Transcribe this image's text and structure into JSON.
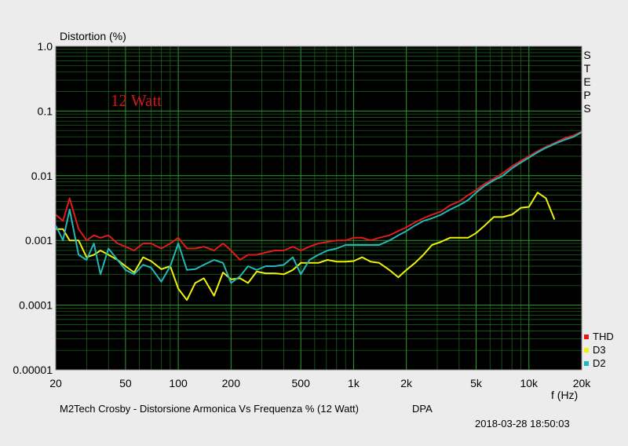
{
  "chart_data": {
    "type": "line",
    "xscale": "log",
    "yscale": "log",
    "xlim": [
      20,
      20000
    ],
    "ylim": [
      1e-05,
      1.0
    ],
    "ylabel": "Distortion (%)",
    "xlabel": "f (Hz)",
    "annotation": "12 Watt",
    "side_label": "STEPS",
    "x_ticks": [
      {
        "v": 20,
        "label": "20"
      },
      {
        "v": 50,
        "label": "50"
      },
      {
        "v": 100,
        "label": "100"
      },
      {
        "v": 200,
        "label": "200"
      },
      {
        "v": 500,
        "label": "500"
      },
      {
        "v": 1000,
        "label": "1k"
      },
      {
        "v": 2000,
        "label": "2k"
      },
      {
        "v": 5000,
        "label": "5k"
      },
      {
        "v": 10000,
        "label": "10k"
      },
      {
        "v": 20000,
        "label": "20k"
      }
    ],
    "y_ticks": [
      {
        "v": 1.0,
        "label": "1.0"
      },
      {
        "v": 0.1,
        "label": "0.1"
      },
      {
        "v": 0.01,
        "label": "0.01"
      },
      {
        "v": 0.001,
        "label": "0.001"
      },
      {
        "v": 0.0001,
        "label": "0.0001"
      },
      {
        "v": 1e-05,
        "label": "0.00001"
      }
    ],
    "grid": true,
    "legend_position": "bottom-right",
    "background": "#000000",
    "grid_color": "#1f6b1f",
    "major_grid_color": "#2e9a2e",
    "series": [
      {
        "name": "THD",
        "color": "#e01b1b",
        "points": [
          [
            20,
            0.0025
          ],
          [
            22,
            0.002
          ],
          [
            24,
            0.0045
          ],
          [
            27,
            0.0015
          ],
          [
            30,
            0.001
          ],
          [
            33,
            0.0012
          ],
          [
            36,
            0.0011
          ],
          [
            40,
            0.0012
          ],
          [
            45,
            0.0009
          ],
          [
            50,
            0.0008
          ],
          [
            56,
            0.0007
          ],
          [
            63,
            0.0009
          ],
          [
            70,
            0.0009
          ],
          [
            80,
            0.00075
          ],
          [
            90,
            0.0009
          ],
          [
            100,
            0.0011
          ],
          [
            112,
            0.00075
          ],
          [
            125,
            0.00075
          ],
          [
            140,
            0.0008
          ],
          [
            160,
            0.0007
          ],
          [
            180,
            0.0009
          ],
          [
            200,
            0.0007
          ],
          [
            225,
            0.0005
          ],
          [
            250,
            0.0006
          ],
          [
            280,
            0.0006
          ],
          [
            315,
            0.00065
          ],
          [
            355,
            0.0007
          ],
          [
            400,
            0.0007
          ],
          [
            450,
            0.0008
          ],
          [
            500,
            0.0007
          ],
          [
            560,
            0.0008
          ],
          [
            630,
            0.0009
          ],
          [
            710,
            0.00095
          ],
          [
            800,
            0.001
          ],
          [
            900,
            0.001
          ],
          [
            1000,
            0.0011
          ],
          [
            1120,
            0.0011
          ],
          [
            1250,
            0.001
          ],
          [
            1400,
            0.0011
          ],
          [
            1600,
            0.0012
          ],
          [
            1800,
            0.0014
          ],
          [
            2000,
            0.0016
          ],
          [
            2240,
            0.0019
          ],
          [
            2500,
            0.0022
          ],
          [
            2800,
            0.0025
          ],
          [
            3150,
            0.0028
          ],
          [
            3550,
            0.0035
          ],
          [
            4000,
            0.004
          ],
          [
            4500,
            0.005
          ],
          [
            5000,
            0.006
          ],
          [
            5600,
            0.0075
          ],
          [
            6300,
            0.009
          ],
          [
            7100,
            0.011
          ],
          [
            8000,
            0.014
          ],
          [
            9000,
            0.017
          ],
          [
            10000,
            0.02
          ],
          [
            11200,
            0.024
          ],
          [
            12500,
            0.028
          ],
          [
            14000,
            0.032
          ],
          [
            16000,
            0.038
          ],
          [
            18000,
            0.042
          ],
          [
            20000,
            0.048
          ]
        ]
      },
      {
        "name": "D3",
        "color": "#f0f00a",
        "points": [
          [
            20,
            0.0015
          ],
          [
            22,
            0.0015
          ],
          [
            24,
            0.001
          ],
          [
            27,
            0.001
          ],
          [
            30,
            0.00055
          ],
          [
            33,
            0.0006
          ],
          [
            36,
            0.0007
          ],
          [
            40,
            0.0006
          ],
          [
            45,
            0.0005
          ],
          [
            50,
            0.0004
          ],
          [
            56,
            0.00032
          ],
          [
            63,
            0.00055
          ],
          [
            70,
            0.00048
          ],
          [
            80,
            0.00036
          ],
          [
            90,
            0.0004
          ],
          [
            100,
            0.00018
          ],
          [
            112,
            0.00012
          ],
          [
            125,
            0.00022
          ],
          [
            140,
            0.00026
          ],
          [
            160,
            0.00014
          ],
          [
            180,
            0.00032
          ],
          [
            200,
            0.00025
          ],
          [
            225,
            0.00026
          ],
          [
            250,
            0.00022
          ],
          [
            280,
            0.00033
          ],
          [
            315,
            0.00031
          ],
          [
            355,
            0.00031
          ],
          [
            400,
            0.0003
          ],
          [
            450,
            0.00035
          ],
          [
            500,
            0.00045
          ],
          [
            560,
            0.00045
          ],
          [
            630,
            0.00045
          ],
          [
            710,
            0.0005
          ],
          [
            800,
            0.00047
          ],
          [
            900,
            0.00047
          ],
          [
            1000,
            0.00048
          ],
          [
            1120,
            0.00055
          ],
          [
            1250,
            0.00047
          ],
          [
            1400,
            0.00045
          ],
          [
            1600,
            0.00035
          ],
          [
            1800,
            0.00027
          ],
          [
            2000,
            0.00035
          ],
          [
            2240,
            0.00045
          ],
          [
            2500,
            0.0006
          ],
          [
            2800,
            0.00085
          ],
          [
            3150,
            0.00095
          ],
          [
            3550,
            0.0011
          ],
          [
            4000,
            0.0011
          ],
          [
            4500,
            0.0011
          ],
          [
            5000,
            0.0013
          ],
          [
            5600,
            0.0017
          ],
          [
            6300,
            0.0023
          ],
          [
            7100,
            0.0023
          ],
          [
            8000,
            0.0025
          ],
          [
            9000,
            0.0032
          ],
          [
            10000,
            0.0033
          ],
          [
            11200,
            0.0055
          ],
          [
            12500,
            0.0045
          ],
          [
            14000,
            0.0021
          ]
        ]
      },
      {
        "name": "D2",
        "color": "#22b8b8",
        "points": [
          [
            20,
            0.0017
          ],
          [
            22,
            0.001
          ],
          [
            24,
            0.003
          ],
          [
            27,
            0.0006
          ],
          [
            30,
            0.0005
          ],
          [
            33,
            0.0009
          ],
          [
            36,
            0.0003
          ],
          [
            40,
            0.00075
          ],
          [
            45,
            0.0005
          ],
          [
            50,
            0.00035
          ],
          [
            56,
            0.0003
          ],
          [
            63,
            0.00042
          ],
          [
            70,
            0.00038
          ],
          [
            80,
            0.00023
          ],
          [
            90,
            0.0004
          ],
          [
            100,
            0.0009
          ],
          [
            112,
            0.00035
          ],
          [
            125,
            0.00036
          ],
          [
            140,
            0.00042
          ],
          [
            160,
            0.0005
          ],
          [
            180,
            0.00045
          ],
          [
            200,
            0.00022
          ],
          [
            225,
            0.00028
          ],
          [
            250,
            0.0004
          ],
          [
            280,
            0.00035
          ],
          [
            315,
            0.0004
          ],
          [
            355,
            0.0004
          ],
          [
            400,
            0.00042
          ],
          [
            450,
            0.00055
          ],
          [
            500,
            0.0003
          ],
          [
            560,
            0.0005
          ],
          [
            630,
            0.0006
          ],
          [
            710,
            0.0007
          ],
          [
            800,
            0.00075
          ],
          [
            900,
            0.00085
          ],
          [
            1000,
            0.00085
          ],
          [
            1120,
            0.00085
          ],
          [
            1250,
            0.00085
          ],
          [
            1400,
            0.00085
          ],
          [
            1600,
            0.001
          ],
          [
            1800,
            0.0012
          ],
          [
            2000,
            0.0014
          ],
          [
            2240,
            0.0017
          ],
          [
            2500,
            0.002
          ],
          [
            2800,
            0.0022
          ],
          [
            3150,
            0.0025
          ],
          [
            3550,
            0.003
          ],
          [
            4000,
            0.0035
          ],
          [
            4500,
            0.0042
          ],
          [
            5000,
            0.0055
          ],
          [
            5600,
            0.007
          ],
          [
            6300,
            0.0085
          ],
          [
            7100,
            0.01
          ],
          [
            8000,
            0.013
          ],
          [
            9000,
            0.016
          ],
          [
            10000,
            0.019
          ],
          [
            11200,
            0.023
          ],
          [
            12500,
            0.027
          ],
          [
            14000,
            0.031
          ],
          [
            16000,
            0.036
          ],
          [
            18000,
            0.04
          ],
          [
            20000,
            0.047
          ]
        ]
      }
    ]
  },
  "header": {
    "ylabel": "Distortion (%)",
    "steps": [
      "S",
      "T",
      "E",
      "P",
      "S"
    ]
  },
  "footer": {
    "caption": "M2Tech Crosby - Distorsione Armonica Vs Frequenza % (12 Watt)",
    "source": "DPA",
    "timestamp": "2018-03-28 18:50:03"
  },
  "legend": [
    {
      "label": "THD",
      "color": "#e01b1b"
    },
    {
      "label": "D3",
      "color": "#f0f00a"
    },
    {
      "label": "D2",
      "color": "#22b8b8"
    }
  ]
}
